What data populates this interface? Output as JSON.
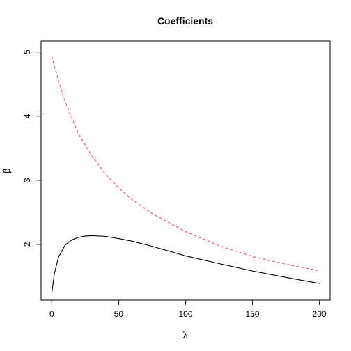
{
  "chart_data": {
    "type": "line",
    "title": "Coefficients",
    "xlabel": "λ",
    "ylabel": "β̂",
    "xlim": [
      -8,
      208
    ],
    "ylim": [
      1.13,
      5.17
    ],
    "x_ticks": [
      0,
      50,
      100,
      150,
      200
    ],
    "y_ticks": [
      2,
      3,
      4,
      5
    ],
    "grid": false,
    "series": [
      {
        "line_style": "solid",
        "color": "#000000",
        "x": [
          0,
          2,
          5,
          10,
          15,
          20,
          25,
          30,
          40,
          50,
          60,
          75,
          100,
          125,
          150,
          175,
          200
        ],
        "y": [
          1.24,
          1.55,
          1.8,
          1.99,
          2.07,
          2.11,
          2.13,
          2.135,
          2.125,
          2.09,
          2.05,
          1.97,
          1.82,
          1.7,
          1.585,
          1.485,
          1.39
        ]
      },
      {
        "line_style": "dashed",
        "color": "#df536b",
        "x": [
          0,
          5,
          10,
          20,
          30,
          40,
          50,
          60,
          75,
          100,
          125,
          150,
          175,
          200
        ],
        "y": [
          4.93,
          4.55,
          4.22,
          3.72,
          3.38,
          3.1,
          2.88,
          2.7,
          2.48,
          2.2,
          1.98,
          1.81,
          1.69,
          1.59
        ]
      }
    ]
  }
}
